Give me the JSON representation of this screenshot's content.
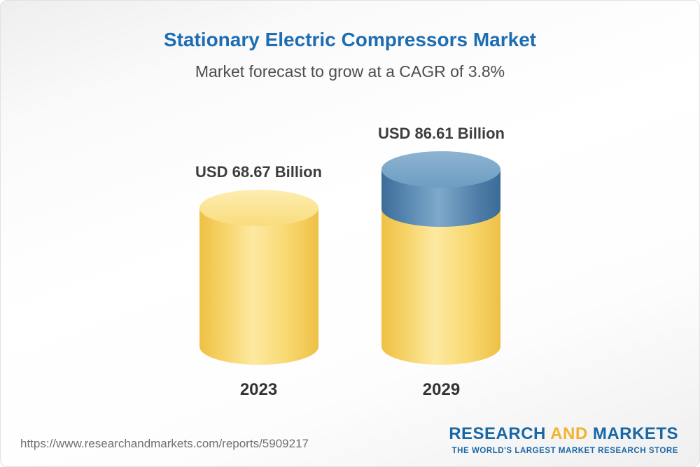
{
  "header": {
    "title": "Stationary Electric Compressors Market",
    "subtitle": "Market forecast to grow at a CAGR of 3.8%"
  },
  "chart_data": {
    "type": "bar",
    "title": "Stationary Electric Compressors Market",
    "subtitle": "Market forecast to grow at a CAGR of 3.8%",
    "categories": [
      "2023",
      "2029"
    ],
    "values": [
      68.67,
      86.61
    ],
    "unit": "USD Billion",
    "value_labels": [
      "USD 68.67 Billion",
      "USD 86.61 Billion"
    ],
    "cagr_pct": 3.8,
    "ylim": [
      0,
      90
    ],
    "grid": false,
    "legend_position": "none",
    "bar_colors": {
      "base_2023": "#f6cd5e",
      "base_2029": "#f6cd5e",
      "growth_segment_2029": "#4e80ad"
    }
  },
  "footer": {
    "url": "https://www.researchandmarkets.com/reports/5909217",
    "logo": {
      "research": "RESEARCH",
      "and": "AND",
      "markets": "MARKETS",
      "tagline": "THE WORLD'S LARGEST MARKET RESEARCH STORE"
    }
  }
}
